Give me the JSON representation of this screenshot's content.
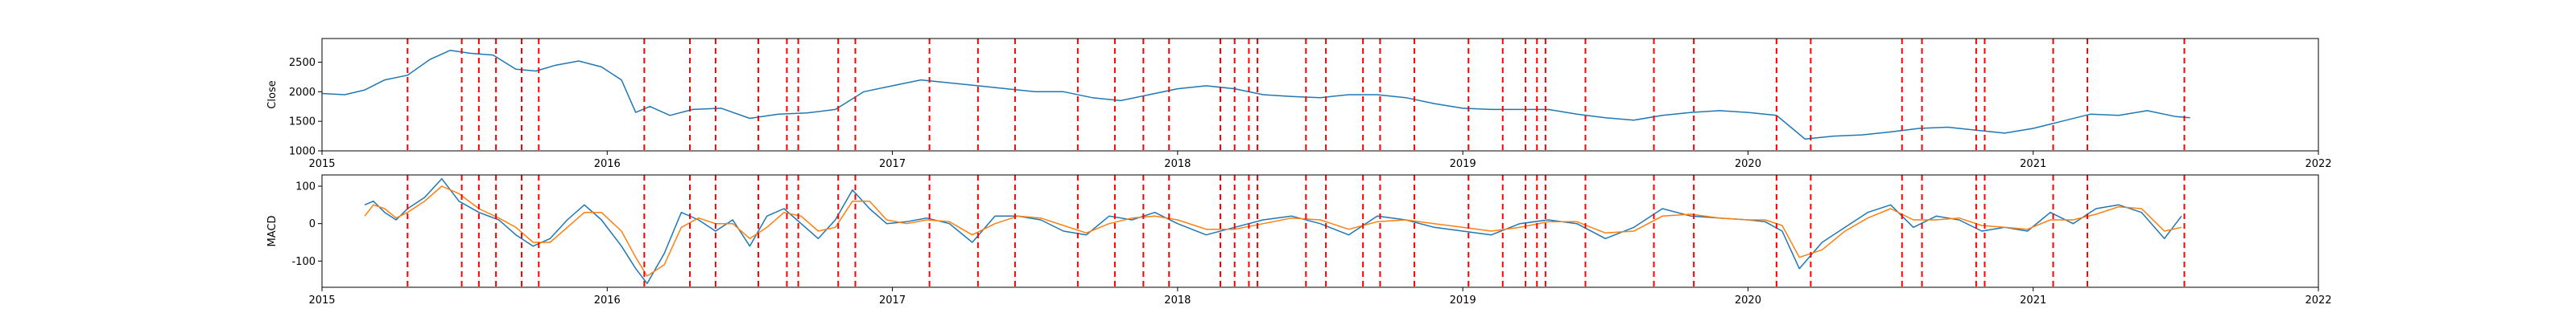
{
  "chart_data": [
    {
      "type": "line",
      "ylabel": "Close",
      "xlim": [
        2015,
        2022
      ],
      "ylim": [
        1000,
        2900
      ],
      "x_ticks": [
        2015,
        2016,
        2017,
        2018,
        2019,
        2020,
        2021,
        2022
      ],
      "y_ticks": [
        1000,
        1500,
        2000,
        2500
      ],
      "series": [
        {
          "color": "#1f77b4",
          "x": [
            2015.0,
            2015.08,
            2015.15,
            2015.22,
            2015.3,
            2015.38,
            2015.45,
            2015.52,
            2015.6,
            2015.68,
            2015.75,
            2015.82,
            2015.9,
            2015.98,
            2016.05,
            2016.1,
            2016.15,
            2016.22,
            2016.3,
            2016.4,
            2016.5,
            2016.6,
            2016.7,
            2016.8,
            2016.9,
            2017.0,
            2017.1,
            2017.2,
            2017.3,
            2017.4,
            2017.5,
            2017.6,
            2017.7,
            2017.8,
            2017.9,
            2018.0,
            2018.1,
            2018.2,
            2018.3,
            2018.4,
            2018.5,
            2018.6,
            2018.7,
            2018.8,
            2018.9,
            2019.0,
            2019.1,
            2019.2,
            2019.3,
            2019.4,
            2019.5,
            2019.6,
            2019.7,
            2019.8,
            2019.9,
            2020.0,
            2020.1,
            2020.15,
            2020.2,
            2020.3,
            2020.4,
            2020.5,
            2020.6,
            2020.7,
            2020.8,
            2020.9,
            2021.0,
            2021.1,
            2021.2,
            2021.3,
            2021.4,
            2021.5,
            2021.55
          ],
          "y": [
            1970,
            1950,
            2030,
            2200,
            2280,
            2550,
            2700,
            2650,
            2620,
            2380,
            2350,
            2450,
            2520,
            2420,
            2200,
            1650,
            1750,
            1600,
            1700,
            1720,
            1550,
            1620,
            1640,
            1700,
            2000,
            2100,
            2200,
            2150,
            2100,
            2050,
            2000,
            2000,
            1900,
            1850,
            1950,
            2050,
            2100,
            2050,
            1950,
            1920,
            1900,
            1950,
            1950,
            1900,
            1800,
            1720,
            1700,
            1700,
            1700,
            1620,
            1560,
            1520,
            1600,
            1650,
            1680,
            1650,
            1600,
            1400,
            1200,
            1250,
            1270,
            1320,
            1380,
            1400,
            1350,
            1300,
            1380,
            1500,
            1620,
            1600,
            1680,
            1580,
            1560
          ]
        }
      ]
    },
    {
      "type": "line",
      "ylabel": "MACD",
      "xlim": [
        2015,
        2022
      ],
      "ylim": [
        -170,
        130
      ],
      "x_ticks": [
        2015,
        2016,
        2017,
        2018,
        2019,
        2020,
        2021,
        2022
      ],
      "y_ticks": [
        -100,
        0,
        100
      ],
      "series": [
        {
          "color": "#1f77b4",
          "x": [
            2015.15,
            2015.18,
            2015.22,
            2015.26,
            2015.3,
            2015.36,
            2015.42,
            2015.48,
            2015.55,
            2015.62,
            2015.68,
            2015.74,
            2015.8,
            2015.86,
            2015.92,
            2015.98,
            2016.05,
            2016.1,
            2016.14,
            2016.2,
            2016.26,
            2016.32,
            2016.38,
            2016.44,
            2016.5,
            2016.56,
            2016.62,
            2016.68,
            2016.74,
            2016.8,
            2016.86,
            2016.92,
            2016.98,
            2017.05,
            2017.12,
            2017.2,
            2017.28,
            2017.36,
            2017.44,
            2017.52,
            2017.6,
            2017.68,
            2017.76,
            2017.84,
            2017.92,
            2018.0,
            2018.1,
            2018.2,
            2018.3,
            2018.4,
            2018.5,
            2018.6,
            2018.7,
            2018.8,
            2018.9,
            2019.0,
            2019.1,
            2019.2,
            2019.3,
            2019.4,
            2019.5,
            2019.6,
            2019.7,
            2019.8,
            2019.9,
            2020.0,
            2020.06,
            2020.12,
            2020.18,
            2020.26,
            2020.34,
            2020.42,
            2020.5,
            2020.58,
            2020.66,
            2020.74,
            2020.82,
            2020.9,
            2020.98,
            2021.06,
            2021.14,
            2021.22,
            2021.3,
            2021.38,
            2021.46,
            2021.52
          ],
          "y": [
            50,
            60,
            30,
            10,
            40,
            70,
            120,
            60,
            30,
            10,
            -30,
            -60,
            -40,
            10,
            50,
            10,
            -60,
            -120,
            -160,
            -80,
            30,
            10,
            -20,
            10,
            -60,
            20,
            40,
            0,
            -40,
            10,
            90,
            40,
            0,
            5,
            15,
            0,
            -50,
            20,
            20,
            10,
            -20,
            -30,
            20,
            10,
            30,
            0,
            -30,
            -10,
            10,
            20,
            0,
            -30,
            20,
            10,
            -10,
            -20,
            -30,
            0,
            10,
            0,
            -40,
            -10,
            40,
            20,
            15,
            10,
            5,
            -20,
            -120,
            -50,
            -10,
            30,
            50,
            -10,
            20,
            10,
            -20,
            -10,
            -20,
            30,
            0,
            40,
            50,
            30,
            -40,
            20
          ]
        },
        {
          "color": "#ff7f0e",
          "x": [
            2015.15,
            2015.18,
            2015.22,
            2015.26,
            2015.3,
            2015.36,
            2015.42,
            2015.48,
            2015.55,
            2015.62,
            2015.68,
            2015.74,
            2015.8,
            2015.86,
            2015.92,
            2015.98,
            2016.05,
            2016.1,
            2016.14,
            2016.2,
            2016.26,
            2016.32,
            2016.38,
            2016.44,
            2016.5,
            2016.56,
            2016.62,
            2016.68,
            2016.74,
            2016.8,
            2016.86,
            2016.92,
            2016.98,
            2017.05,
            2017.12,
            2017.2,
            2017.28,
            2017.36,
            2017.44,
            2017.52,
            2017.6,
            2017.68,
            2017.76,
            2017.84,
            2017.92,
            2018.0,
            2018.1,
            2018.2,
            2018.3,
            2018.4,
            2018.5,
            2018.6,
            2018.7,
            2018.8,
            2018.9,
            2019.0,
            2019.1,
            2019.2,
            2019.3,
            2019.4,
            2019.5,
            2019.6,
            2019.7,
            2019.8,
            2019.9,
            2020.0,
            2020.06,
            2020.12,
            2020.18,
            2020.26,
            2020.34,
            2020.42,
            2020.5,
            2020.58,
            2020.66,
            2020.74,
            2020.82,
            2020.9,
            2020.98,
            2021.06,
            2021.14,
            2021.22,
            2021.3,
            2021.38,
            2021.46,
            2021.52
          ],
          "y": [
            20,
            50,
            40,
            15,
            30,
            60,
            100,
            80,
            40,
            15,
            -10,
            -50,
            -50,
            -10,
            30,
            30,
            -20,
            -90,
            -140,
            -110,
            -10,
            15,
            0,
            0,
            -40,
            -10,
            30,
            20,
            -20,
            -10,
            60,
            60,
            10,
            0,
            10,
            5,
            -30,
            0,
            20,
            15,
            -5,
            -25,
            0,
            15,
            20,
            10,
            -15,
            -15,
            0,
            15,
            10,
            -15,
            5,
            10,
            0,
            -10,
            -20,
            -10,
            5,
            5,
            -25,
            -20,
            20,
            25,
            15,
            10,
            10,
            -5,
            -90,
            -70,
            -20,
            15,
            40,
            10,
            10,
            15,
            -5,
            -10,
            -15,
            10,
            10,
            25,
            45,
            40,
            -20,
            -10
          ]
        }
      ]
    }
  ],
  "vlines_x": [
    2015.3,
    2015.49,
    2015.55,
    2015.61,
    2015.7,
    2015.76,
    2016.13,
    2016.29,
    2016.38,
    2016.53,
    2016.63,
    2016.67,
    2016.81,
    2016.87,
    2017.13,
    2017.3,
    2017.43,
    2017.65,
    2017.78,
    2017.88,
    2017.97,
    2018.15,
    2018.2,
    2018.25,
    2018.28,
    2018.45,
    2018.52,
    2018.65,
    2018.71,
    2018.83,
    2019.02,
    2019.14,
    2019.22,
    2019.26,
    2019.29,
    2019.43,
    2019.67,
    2019.81,
    2020.1,
    2020.22,
    2020.54,
    2020.61,
    2020.8,
    2020.83,
    2021.07,
    2021.19,
    2021.53
  ],
  "vline_color": "#ff0000"
}
